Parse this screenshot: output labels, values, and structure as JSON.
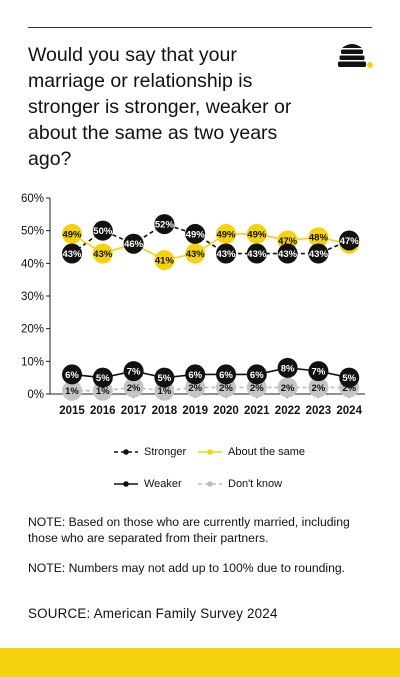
{
  "title": "Would you say that your marriage or relationship is stronger is stronger, weaker or about the same as two years ago?",
  "logo": {
    "icon": "beehive-icon",
    "dot_color": "#f5d20c"
  },
  "legend": {
    "stronger": "Stronger",
    "about_same": "About the same",
    "weaker": "Weaker",
    "dont_know": "Don't know"
  },
  "notes": {
    "note1": "NOTE: Based on those who are currently married, including those who are separated from their partners.",
    "note2": "NOTE: Numbers may not add up to 100% due to rounding."
  },
  "source": "SOURCE: American Family Survey 2024",
  "colors": {
    "stronger": "#111111",
    "about_same": "#f5d20c",
    "weaker": "#111111",
    "dont_know": "#bdbdbd",
    "bottom_bar": "#f5d20c"
  },
  "chart_data": {
    "type": "line",
    "title": "Would you say that your marriage or relationship is stronger is stronger, weaker or about the same as two years ago?",
    "x": [
      "2015",
      "2016",
      "2017",
      "2018",
      "2019",
      "2020",
      "2021",
      "2022",
      "2023",
      "2024"
    ],
    "ylim": [
      0,
      60
    ],
    "yticks": [
      "0%",
      "10%",
      "20%",
      "30%",
      "40%",
      "50%",
      "60%"
    ],
    "grid": false,
    "legend_position": "bottom",
    "series": [
      {
        "name": "Stronger",
        "values": [
          43,
          50,
          46,
          52,
          49,
          43,
          43,
          43,
          43,
          47
        ],
        "labels": [
          "43%",
          "50%",
          "46%",
          "52%",
          "49%",
          "43%",
          "43%",
          "43%",
          "43%",
          "47%"
        ],
        "style": "dashed"
      },
      {
        "name": "About the same",
        "values": [
          49,
          43,
          46,
          41,
          43,
          49,
          49,
          47,
          48,
          46
        ],
        "labels": [
          "49%",
          "43%",
          "46%",
          "41%",
          "43%",
          "49%",
          "49%",
          "47%",
          "48%",
          "46%"
        ],
        "style": "solid"
      },
      {
        "name": "Weaker",
        "values": [
          6,
          5,
          7,
          5,
          6,
          6,
          6,
          8,
          7,
          5
        ],
        "labels": [
          "6%",
          "5%",
          "7%",
          "5%",
          "6%",
          "6%",
          "6%",
          "8%",
          "7%",
          "5%"
        ],
        "style": "solid"
      },
      {
        "name": "Don't know",
        "values": [
          1,
          1,
          2,
          1,
          2,
          2,
          2,
          2,
          2,
          2
        ],
        "labels": [
          "1%",
          "1%",
          "2%",
          "1%",
          "2%",
          "2%",
          "2%",
          "2%",
          "2%",
          "2%"
        ],
        "style": "dashed"
      }
    ]
  }
}
